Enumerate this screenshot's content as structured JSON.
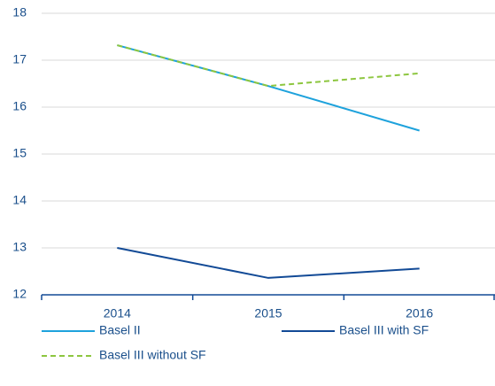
{
  "chart_data": {
    "type": "line",
    "categories": [
      "2014",
      "2015",
      "2016"
    ],
    "series": [
      {
        "name": "Basel II",
        "color": "#1ea2dc",
        "dashed": false,
        "values": [
          17.32,
          16.45,
          15.5
        ]
      },
      {
        "name": "Basel III with SF",
        "color": "#124a96",
        "dashed": false,
        "values": [
          13.0,
          12.36,
          12.56
        ]
      },
      {
        "name": "Basel III without SF",
        "color": "#8dc63f",
        "dashed": true,
        "values": [
          17.32,
          16.45,
          16.72
        ]
      }
    ],
    "ylim": [
      12,
      18
    ],
    "yticks": [
      12,
      13,
      14,
      15,
      16,
      17,
      18
    ],
    "grid": true
  }
}
